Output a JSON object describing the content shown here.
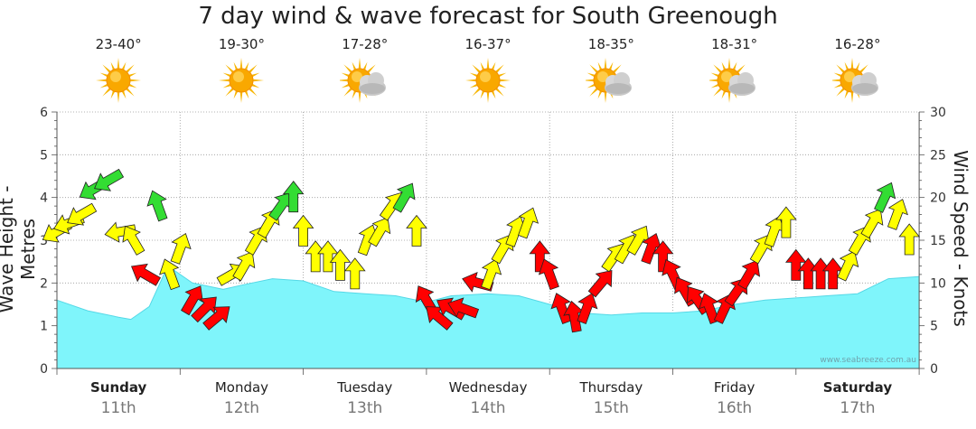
{
  "title": "7 day wind & wave forecast for South Greenough",
  "watermark": "www.seabreeze.com.au",
  "days": [
    {
      "name": "Sunday",
      "date": "11th",
      "temp": "23-40°",
      "weather_icon": "sun-icon",
      "bold": true
    },
    {
      "name": "Monday",
      "date": "12th",
      "temp": "19-30°",
      "weather_icon": "sun-icon",
      "bold": false
    },
    {
      "name": "Tuesday",
      "date": "13th",
      "temp": "17-28°",
      "weather_icon": "partly-cloudy-icon",
      "bold": false
    },
    {
      "name": "Wednesday",
      "date": "14th",
      "temp": "16-37°",
      "weather_icon": "sun-icon",
      "bold": false
    },
    {
      "name": "Thursday",
      "date": "15th",
      "temp": "18-35°",
      "weather_icon": "partly-cloudy-icon",
      "bold": false
    },
    {
      "name": "Friday",
      "date": "16th",
      "temp": "18-31°",
      "weather_icon": "partly-cloudy-icon",
      "bold": false
    },
    {
      "name": "Saturday",
      "date": "17th",
      "temp": "16-28°",
      "weather_icon": "partly-cloudy-icon",
      "bold": true
    }
  ],
  "chart_data": {
    "type": "area",
    "title": "7 day wind & wave forecast for South Greenough",
    "ylabel_left": "Wave Height - Metres",
    "ylabel_right": "Wind Speed - Knots",
    "ylim_left": [
      0,
      6
    ],
    "ylim_right": [
      0,
      30
    ],
    "yticks_left": [
      0,
      1,
      2,
      3,
      4,
      5,
      6
    ],
    "yticks_right": [
      0,
      5,
      10,
      15,
      20,
      25,
      30
    ],
    "x_unit": "days from start of Sunday 11th",
    "grid": true,
    "colors": {
      "wave": "#7ff5fb",
      "wave_line": "#55d8e6",
      "strong": "#ff0000",
      "moderate": "#ffff00",
      "light": "#33dd33"
    },
    "wave_height": {
      "x": [
        0,
        0.25,
        0.5,
        0.6,
        0.75,
        0.9,
        1.1,
        1.35,
        1.5,
        1.75,
        2.0,
        2.25,
        2.5,
        2.75,
        3.0,
        3.2,
        3.5,
        3.75,
        4.0,
        4.25,
        4.5,
        4.75,
        5.0,
        5.25,
        5.5,
        5.75,
        6.0,
        6.25,
        6.5,
        6.75,
        7.0
      ],
      "values": [
        1.6,
        1.35,
        1.2,
        1.15,
        1.45,
        2.4,
        2.0,
        1.85,
        1.95,
        2.1,
        2.05,
        1.8,
        1.75,
        1.7,
        1.55,
        1.7,
        1.75,
        1.7,
        1.5,
        1.3,
        1.25,
        1.3,
        1.3,
        1.35,
        1.5,
        1.6,
        1.65,
        1.7,
        1.75,
        2.1,
        2.15
      ]
    },
    "wind": {
      "x": [
        0,
        0.1,
        0.2,
        0.3,
        0.42,
        0.52,
        0.62,
        0.72,
        0.82,
        0.92,
        1.0,
        1.1,
        1.2,
        1.3,
        1.42,
        1.52,
        1.62,
        1.72,
        1.82,
        1.92,
        2.0,
        2.1,
        2.2,
        2.3,
        2.42,
        2.52,
        2.62,
        2.72,
        2.82,
        2.92,
        3.0,
        3.1,
        3.2,
        3.3,
        3.42,
        3.52,
        3.62,
        3.72,
        3.82,
        3.92,
        4.0,
        4.1,
        4.2,
        4.3,
        4.42,
        4.52,
        4.62,
        4.72,
        4.82,
        4.92,
        5.0,
        5.1,
        5.2,
        5.3,
        5.42,
        5.52,
        5.62,
        5.72,
        5.82,
        5.92,
        6.0,
        6.1,
        6.2,
        6.3,
        6.42,
        6.52,
        6.62,
        6.72,
        6.82,
        6.92
      ],
      "speed": [
        16,
        17,
        18,
        21,
        22,
        16,
        15,
        11,
        19,
        11,
        14,
        8,
        7,
        6,
        11,
        12,
        15,
        17,
        19,
        20,
        16,
        13,
        13,
        12,
        11,
        15,
        16,
        19,
        20,
        16,
        8,
        6,
        7,
        7,
        10,
        11,
        14,
        16,
        17,
        13,
        11,
        7,
        6,
        7,
        10,
        13,
        14,
        15,
        14,
        13,
        11,
        9,
        8,
        7,
        7,
        9,
        11,
        14,
        16,
        17,
        12,
        11,
        11,
        11,
        12,
        15,
        17,
        20,
        18,
        15
      ],
      "direction_deg": [
        60,
        70,
        60,
        60,
        60,
        80,
        150,
        120,
        160,
        160,
        200,
        210,
        225,
        230,
        240,
        210,
        210,
        210,
        215,
        180,
        180,
        180,
        180,
        180,
        180,
        200,
        210,
        215,
        210,
        180,
        150,
        130,
        120,
        110,
        105,
        200,
        210,
        200,
        200,
        180,
        160,
        160,
        170,
        200,
        220,
        215,
        210,
        210,
        200,
        180,
        155,
        150,
        145,
        160,
        205,
        215,
        210,
        210,
        200,
        180,
        180,
        180,
        180,
        180,
        205,
        210,
        210,
        205,
        200,
        180
      ],
      "category": [
        "moderate",
        "moderate",
        "moderate",
        "light",
        "light",
        "moderate",
        "moderate",
        "strong",
        "light",
        "moderate",
        "moderate",
        "strong",
        "strong",
        "strong",
        "moderate",
        "moderate",
        "moderate",
        "moderate",
        "light",
        "light",
        "moderate",
        "moderate",
        "moderate",
        "moderate",
        "moderate",
        "moderate",
        "moderate",
        "moderate",
        "light",
        "moderate",
        "strong",
        "strong",
        "strong",
        "strong",
        "strong",
        "moderate",
        "moderate",
        "moderate",
        "moderate",
        "strong",
        "strong",
        "strong",
        "strong",
        "strong",
        "strong",
        "moderate",
        "moderate",
        "moderate",
        "strong",
        "strong",
        "strong",
        "strong",
        "strong",
        "strong",
        "strong",
        "strong",
        "strong",
        "moderate",
        "moderate",
        "moderate",
        "strong",
        "strong",
        "strong",
        "strong",
        "moderate",
        "moderate",
        "moderate",
        "light",
        "moderate",
        "moderate"
      ]
    }
  }
}
